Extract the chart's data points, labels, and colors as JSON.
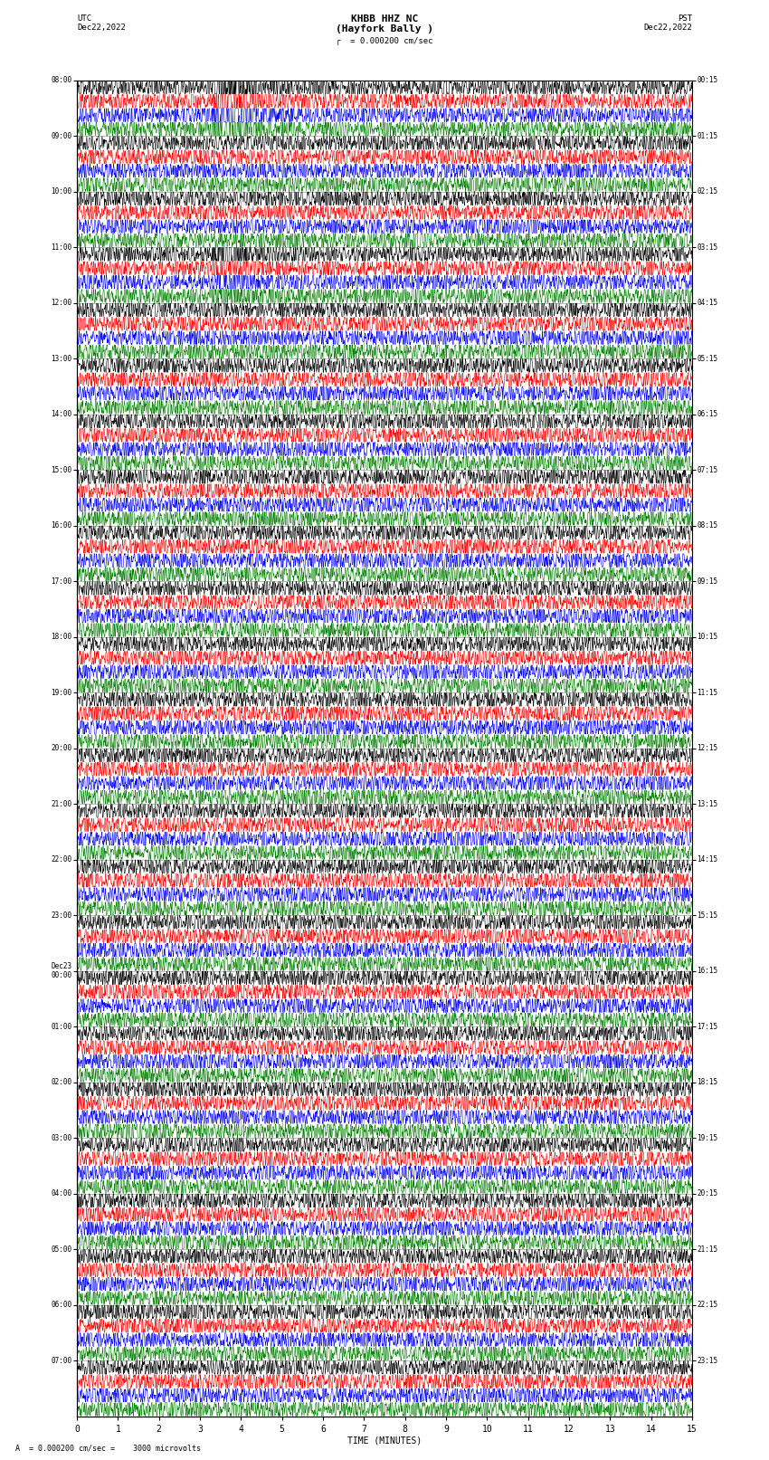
{
  "title_line1": "KHBB HHZ NC",
  "title_line2": "(Hayfork Bally )",
  "scale_label": "= 0.000200 cm/sec",
  "bottom_label": "A  = 0.000200 cm/sec =    3000 microvolts",
  "utc_label": "UTC",
  "date_left": "Dec22,2022",
  "date_right": "Dec22,2022",
  "pst_label": "PST",
  "xlabel": "TIME (MINUTES)",
  "left_times": [
    "08:00",
    "09:00",
    "10:00",
    "11:00",
    "12:00",
    "13:00",
    "14:00",
    "15:00",
    "16:00",
    "17:00",
    "18:00",
    "19:00",
    "20:00",
    "21:00",
    "22:00",
    "23:00",
    "Dec23\n00:00",
    "01:00",
    "02:00",
    "03:00",
    "04:00",
    "05:00",
    "06:00",
    "07:00"
  ],
  "right_times": [
    "00:15",
    "01:15",
    "02:15",
    "03:15",
    "04:15",
    "05:15",
    "06:15",
    "07:15",
    "08:15",
    "09:15",
    "10:15",
    "11:15",
    "12:15",
    "13:15",
    "14:15",
    "15:15",
    "16:15",
    "17:15",
    "18:15",
    "19:15",
    "20:15",
    "21:15",
    "22:15",
    "23:15"
  ],
  "n_rows": 24,
  "traces_per_row": 4,
  "colors": [
    "black",
    "red",
    "blue",
    "green"
  ],
  "bg_color": "white",
  "grid_color": "#888888",
  "minutes": 15,
  "fig_width": 8.5,
  "fig_height": 16.13,
  "eq1_row": 0,
  "eq1_minute": 3.3,
  "eq2_row": 3,
  "eq2_minute": 3.3,
  "seed": 42
}
